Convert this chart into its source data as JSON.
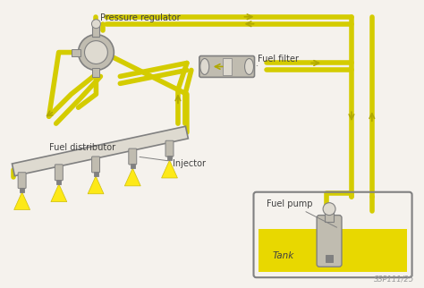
{
  "bg_color": "#f5f2ed",
  "watermark": "SSP111/25",
  "labels": {
    "pressure_regulator": "Pressure regulator",
    "fuel_distributor": "Fuel distributor",
    "fuel_filter": "Fuel filter",
    "injector": "Injector",
    "fuel_pump": "Fuel pump",
    "tank": "Tank"
  },
  "pipe_color": "#d4cc00",
  "pipe_dark": "#b0a800",
  "tank_fill": "#e8d800",
  "component_color": "#c0bcb0",
  "component_dark": "#808080",
  "component_light": "#dedad0",
  "text_color": "#404040",
  "spray_color": "#ffe800",
  "spray_edge": "#c8b800",
  "label_font_size": 7.0
}
